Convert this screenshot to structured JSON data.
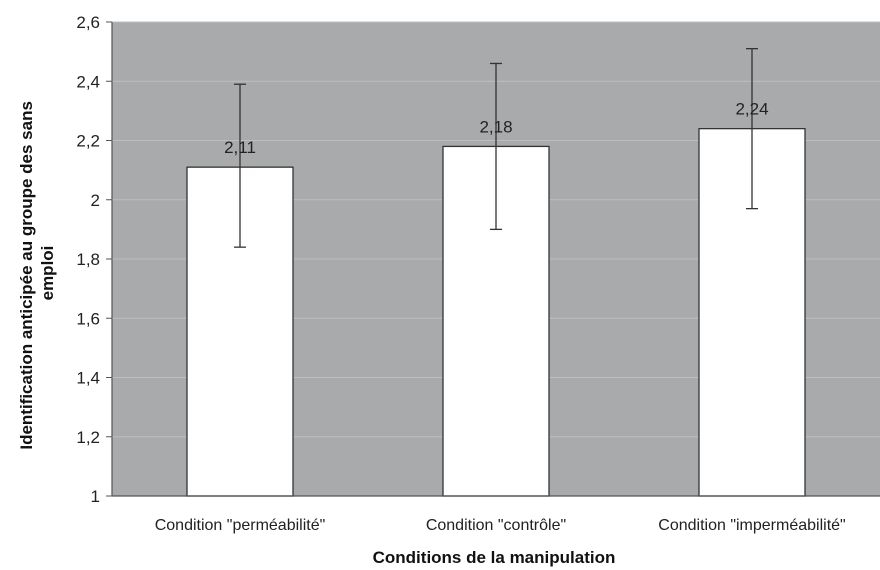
{
  "chart_data": {
    "type": "bar",
    "title": "",
    "xlabel": "Conditions de la manipulation",
    "ylabel_lines": [
      "Identification anticipée au groupe des sans",
      "emploi"
    ],
    "categories": [
      "Condition \"perméabilité\"",
      "Condition \"contrôle\"",
      "Condition \"imperméabilité\""
    ],
    "values": [
      2.11,
      2.18,
      2.24
    ],
    "value_labels": [
      "2,11",
      "2,18",
      "2,24"
    ],
    "error_low": [
      1.84,
      1.9,
      1.97
    ],
    "error_high": [
      2.39,
      2.46,
      2.51
    ],
    "ylim": [
      1,
      2.6
    ],
    "yticks": [
      1,
      1.2,
      1.4,
      1.6,
      1.8,
      2,
      2.2,
      2.4,
      2.6
    ],
    "ytick_labels": [
      "1",
      "1,2",
      "1,4",
      "1,6",
      "1,8",
      "2",
      "2,2",
      "2,4",
      "2,6"
    ],
    "grid": true,
    "legend": "none",
    "colors": {
      "plot_background": "#a8aaab",
      "bar_fill": "#ffffff",
      "bar_stroke": "#333333",
      "gridline": "#bcbebf",
      "error_bar": "#333333"
    }
  }
}
